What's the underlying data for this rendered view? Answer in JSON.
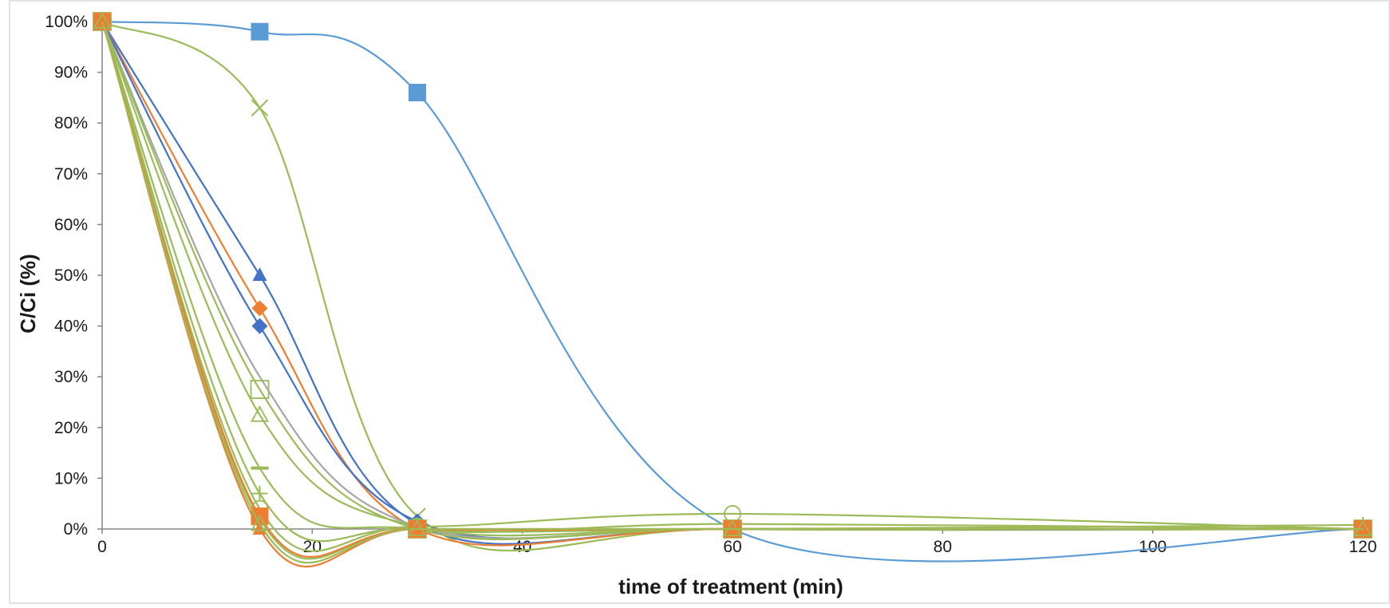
{
  "chart_data": {
    "type": "line",
    "title": "",
    "xlabel": "time of treatment (min)",
    "ylabel": "C/Ci (%)",
    "xlim": [
      0,
      120
    ],
    "ylim": [
      0,
      100
    ],
    "x_ticks": [
      0,
      20,
      40,
      60,
      80,
      100,
      120
    ],
    "y_ticks": [
      0,
      10,
      20,
      30,
      40,
      50,
      60,
      70,
      80,
      90,
      100
    ],
    "y_tick_suffix": "%",
    "grid": false,
    "legend": "none",
    "x": [
      0,
      15,
      30,
      60,
      120
    ],
    "series": [
      {
        "color": "#5b9bd5",
        "marker": "square-filled",
        "values": [
          100,
          98,
          86,
          0,
          0
        ]
      },
      {
        "color": "#9bbb59",
        "marker": "x",
        "values": [
          100,
          83,
          2.5,
          0,
          0
        ]
      },
      {
        "color": "#4472c4",
        "marker": "triangle-filled",
        "values": [
          100,
          50,
          1,
          0,
          0
        ]
      },
      {
        "color": "#ed7d31",
        "marker": "diamond-filled",
        "values": [
          100,
          43.5,
          0,
          0,
          0
        ]
      },
      {
        "color": "#4472c4",
        "marker": "diamond-filled",
        "values": [
          100,
          40,
          1.5,
          0,
          0
        ]
      },
      {
        "color": "#a5a5a5",
        "marker": "none",
        "values": [
          100,
          30,
          0.5,
          0,
          0
        ]
      },
      {
        "color": "#9bbb59",
        "marker": "square-open",
        "values": [
          100,
          27.5,
          0,
          0,
          0
        ]
      },
      {
        "color": "#9bbb59",
        "marker": "triangle-open",
        "values": [
          100,
          22.5,
          0.5,
          0,
          0
        ]
      },
      {
        "color": "#9bbb59",
        "marker": "dash",
        "values": [
          100,
          12,
          0,
          1,
          0
        ]
      },
      {
        "color": "#9bbb59",
        "marker": "plus",
        "values": [
          100,
          7,
          0,
          0,
          0.8
        ]
      },
      {
        "color": "#9bbb59",
        "marker": "circle-open",
        "values": [
          100,
          4,
          0.5,
          3,
          0
        ]
      },
      {
        "color": "#9bbb59",
        "marker": "none",
        "values": [
          100,
          2,
          0,
          0,
          0
        ]
      },
      {
        "color": "#ed7d31",
        "marker": "square-filled",
        "values": [
          100,
          2.5,
          0,
          0,
          0
        ]
      },
      {
        "color": "#ed7d31",
        "marker": "triangle-filled",
        "values": [
          100,
          0,
          0,
          0,
          0
        ]
      },
      {
        "color": "#9bbb59",
        "marker": "triangle-open",
        "values": [
          100,
          1,
          0,
          0,
          0
        ]
      }
    ]
  }
}
